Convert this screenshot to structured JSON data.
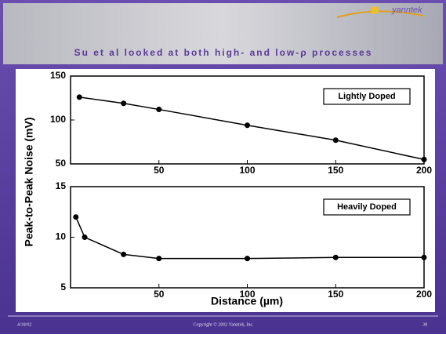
{
  "slide": {
    "title": "Su et al looked at both high- and low-ρ processes",
    "logo": "yanntek",
    "date": "4/18/02",
    "copyright": "Copyright © 2002 Yanntek, Inc.",
    "page": "38"
  },
  "chart_data": [
    {
      "type": "line",
      "annotation": "Lightly Doped",
      "y_label": "Peak-to-Peak Noise (mV)",
      "x": [
        5,
        30,
        50,
        100,
        150,
        200
      ],
      "values": [
        126,
        119,
        112,
        94,
        77,
        55
      ],
      "color": "#000000",
      "xlim": [
        0,
        200
      ],
      "xticks": [
        50,
        100,
        150,
        200
      ],
      "ylim": [
        50,
        150
      ],
      "yticks": [
        50,
        100,
        150
      ]
    },
    {
      "type": "line",
      "annotation": "Heavily Doped",
      "x_label": "Distance (µm)",
      "x": [
        3,
        8,
        30,
        50,
        100,
        150,
        200
      ],
      "values": [
        12,
        10,
        8.3,
        7.9,
        7.9,
        8.0,
        8.0
      ],
      "color": "#000000",
      "xlim": [
        0,
        200
      ],
      "xticks": [
        50,
        100,
        150,
        200
      ],
      "ylim": [
        5,
        15
      ],
      "yticks": [
        5,
        10,
        15
      ]
    }
  ]
}
